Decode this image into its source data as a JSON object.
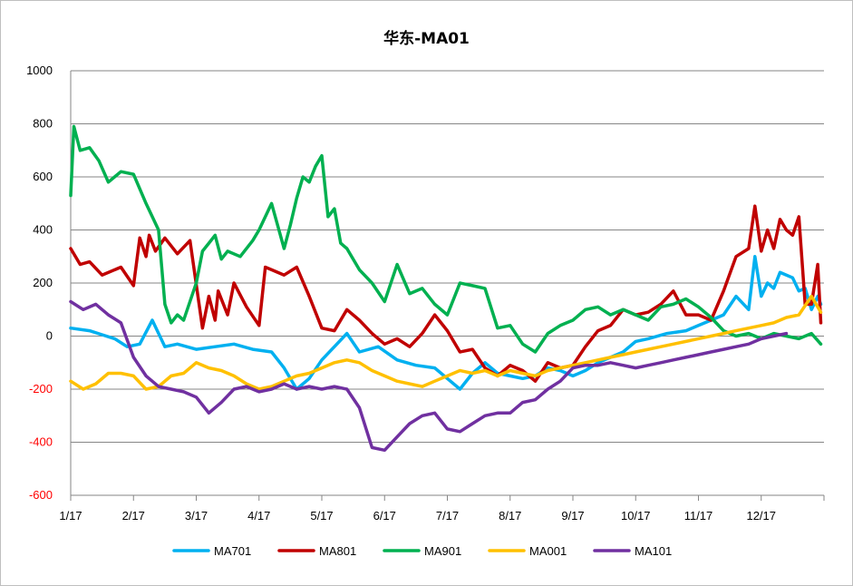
{
  "chart_data": {
    "type": "line",
    "title": "华东-MA01",
    "xlabel": "",
    "ylabel": "",
    "ylim": [
      -600,
      1000
    ],
    "yticks": [
      1000,
      800,
      600,
      400,
      200,
      0,
      -200,
      -400,
      -600
    ],
    "ytick_labels": [
      "1000",
      "800",
      "600",
      "400",
      "200",
      "0",
      "-200",
      "-400",
      "-600"
    ],
    "xlim": [
      0,
      12
    ],
    "xticks": [
      0,
      1,
      2,
      3,
      4,
      5,
      6,
      7,
      8,
      9,
      10,
      11,
      12
    ],
    "xtick_labels": [
      "1/17",
      "2/17",
      "3/17",
      "4/17",
      "5/17",
      "6/17",
      "7/17",
      "8/17",
      "9/17",
      "10/17",
      "11/17",
      "12/17",
      ""
    ],
    "grid": "horizontal",
    "legend": "bottom",
    "negative_tick_color": "#ff0000",
    "series": [
      {
        "name": "MA701",
        "color": "#00b0f0",
        "x": [
          0,
          0.3,
          0.5,
          0.7,
          0.9,
          1.1,
          1.3,
          1.5,
          1.7,
          2.0,
          2.3,
          2.6,
          2.9,
          3.2,
          3.4,
          3.6,
          3.8,
          4.0,
          4.2,
          4.4,
          4.6,
          4.9,
          5.2,
          5.5,
          5.8,
          6.0,
          6.2,
          6.4,
          6.6,
          6.8,
          7.0,
          7.2,
          7.4,
          7.6,
          7.8,
          8.0,
          8.2,
          8.4,
          8.6,
          8.8,
          9.0,
          9.2,
          9.5,
          9.8,
          10.0,
          10.2,
          10.4,
          10.6,
          10.8,
          10.9,
          11.0,
          11.1,
          11.2,
          11.3,
          11.4,
          11.5,
          11.6,
          11.7,
          11.8,
          11.9,
          11.95
        ],
        "values": [
          30,
          20,
          5,
          -10,
          -40,
          -30,
          60,
          -40,
          -30,
          -50,
          -40,
          -30,
          -50,
          -60,
          -120,
          -200,
          -160,
          -90,
          -40,
          10,
          -60,
          -40,
          -90,
          -110,
          -120,
          -160,
          -200,
          -140,
          -100,
          -140,
          -150,
          -160,
          -150,
          -120,
          -130,
          -150,
          -130,
          -100,
          -80,
          -60,
          -20,
          -10,
          10,
          20,
          40,
          60,
          80,
          150,
          100,
          300,
          150,
          200,
          180,
          240,
          230,
          220,
          170,
          180,
          100,
          150,
          120
        ]
      },
      {
        "name": "MA801",
        "color": "#c00000",
        "x": [
          0,
          0.15,
          0.3,
          0.5,
          0.8,
          1.0,
          1.1,
          1.2,
          1.25,
          1.35,
          1.5,
          1.7,
          1.9,
          2.1,
          2.2,
          2.3,
          2.35,
          2.5,
          2.6,
          2.8,
          3.0,
          3.1,
          3.2,
          3.4,
          3.6,
          3.8,
          4.0,
          4.2,
          4.4,
          4.6,
          4.8,
          5.0,
          5.2,
          5.4,
          5.6,
          5.8,
          6.0,
          6.2,
          6.4,
          6.6,
          6.8,
          7.0,
          7.2,
          7.4,
          7.6,
          7.8,
          8.0,
          8.2,
          8.4,
          8.6,
          8.8,
          9.0,
          9.2,
          9.4,
          9.6,
          9.8,
          10.0,
          10.2,
          10.4,
          10.6,
          10.8,
          10.9,
          11.0,
          11.1,
          11.2,
          11.3,
          11.4,
          11.5,
          11.6,
          11.7,
          11.8,
          11.9,
          11.95
        ],
        "values": [
          330,
          270,
          280,
          230,
          260,
          190,
          370,
          300,
          380,
          320,
          370,
          310,
          360,
          30,
          150,
          60,
          170,
          80,
          200,
          110,
          40,
          260,
          250,
          230,
          260,
          150,
          30,
          20,
          100,
          60,
          10,
          -30,
          -10,
          -40,
          10,
          80,
          20,
          -60,
          -50,
          -120,
          -150,
          -110,
          -130,
          -170,
          -100,
          -120,
          -110,
          -40,
          20,
          40,
          100,
          80,
          90,
          120,
          170,
          80,
          80,
          60,
          170,
          300,
          330,
          490,
          320,
          400,
          330,
          440,
          400,
          380,
          450,
          120,
          120,
          270,
          50
        ]
      },
      {
        "name": "MA901",
        "color": "#00b050",
        "x": [
          0,
          0.05,
          0.15,
          0.3,
          0.45,
          0.6,
          0.8,
          1.0,
          1.2,
          1.4,
          1.5,
          1.6,
          1.7,
          1.8,
          2.0,
          2.1,
          2.2,
          2.3,
          2.4,
          2.5,
          2.7,
          2.9,
          3.0,
          3.2,
          3.4,
          3.5,
          3.6,
          3.7,
          3.8,
          3.9,
          4.0,
          4.1,
          4.2,
          4.3,
          4.4,
          4.6,
          4.8,
          5.0,
          5.2,
          5.4,
          5.6,
          5.8,
          6.0,
          6.2,
          6.4,
          6.6,
          6.8,
          7.0,
          7.2,
          7.4,
          7.6,
          7.8,
          8.0,
          8.2,
          8.4,
          8.6,
          8.8,
          9.0,
          9.2,
          9.4,
          9.6,
          9.8,
          10.0,
          10.2,
          10.4,
          10.6,
          10.8,
          11.0,
          11.2,
          11.4,
          11.6,
          11.8,
          11.95
        ],
        "values": [
          530,
          790,
          700,
          710,
          660,
          580,
          620,
          610,
          500,
          400,
          120,
          50,
          80,
          60,
          200,
          320,
          350,
          380,
          290,
          320,
          300,
          360,
          400,
          500,
          330,
          420,
          520,
          600,
          580,
          640,
          680,
          450,
          480,
          350,
          330,
          250,
          200,
          130,
          270,
          160,
          180,
          120,
          80,
          200,
          190,
          180,
          30,
          40,
          -30,
          -60,
          10,
          40,
          60,
          100,
          110,
          80,
          100,
          80,
          60,
          110,
          120,
          140,
          110,
          70,
          20,
          0,
          10,
          -10,
          10,
          0,
          -10,
          10,
          -30
        ]
      },
      {
        "name": "MA001",
        "color": "#ffc000",
        "x": [
          0,
          0.2,
          0.4,
          0.6,
          0.8,
          1.0,
          1.2,
          1.4,
          1.6,
          1.8,
          2.0,
          2.2,
          2.4,
          2.6,
          2.8,
          3.0,
          3.2,
          3.4,
          3.6,
          3.8,
          4.0,
          4.2,
          4.4,
          4.6,
          4.8,
          5.0,
          5.2,
          5.4,
          5.6,
          5.8,
          6.0,
          6.2,
          6.4,
          6.6,
          6.8,
          7.0,
          7.2,
          7.4,
          7.6,
          7.8,
          8.0,
          8.2,
          8.4,
          8.6,
          8.8,
          9.0,
          9.2,
          9.4,
          9.6,
          9.8,
          10.0,
          10.2,
          10.4,
          10.6,
          10.8,
          11.0,
          11.2,
          11.4,
          11.6,
          11.8,
          11.95
        ],
        "values": [
          -170,
          -200,
          -180,
          -140,
          -140,
          -150,
          -200,
          -190,
          -150,
          -140,
          -100,
          -120,
          -130,
          -150,
          -180,
          -200,
          -190,
          -170,
          -150,
          -140,
          -120,
          -100,
          -90,
          -100,
          -130,
          -150,
          -170,
          -180,
          -190,
          -170,
          -150,
          -130,
          -140,
          -130,
          -150,
          -130,
          -140,
          -150,
          -130,
          -120,
          -110,
          -100,
          -90,
          -80,
          -70,
          -60,
          -50,
          -40,
          -30,
          -20,
          -10,
          0,
          10,
          20,
          30,
          40,
          50,
          70,
          80,
          150,
          90
        ]
      },
      {
        "name": "MA101",
        "color": "#7030a0",
        "x": [
          0,
          0.2,
          0.4,
          0.6,
          0.8,
          1.0,
          1.2,
          1.4,
          1.6,
          1.8,
          2.0,
          2.2,
          2.4,
          2.6,
          2.8,
          3.0,
          3.2,
          3.4,
          3.6,
          3.8,
          4.0,
          4.2,
          4.4,
          4.6,
          4.8,
          5.0,
          5.2,
          5.4,
          5.6,
          5.8,
          6.0,
          6.2,
          6.4,
          6.6,
          6.8,
          7.0,
          7.2,
          7.4,
          7.6,
          7.8,
          8.0,
          8.2,
          8.4,
          8.6,
          8.8,
          9.0,
          9.2,
          9.4,
          9.6,
          9.8,
          10.0,
          10.2,
          10.4,
          10.6,
          10.8,
          11.0,
          11.2,
          11.4
        ],
        "values": [
          130,
          100,
          120,
          80,
          50,
          -80,
          -150,
          -190,
          -200,
          -210,
          -230,
          -290,
          -250,
          -200,
          -190,
          -210,
          -200,
          -180,
          -200,
          -190,
          -200,
          -190,
          -200,
          -270,
          -420,
          -430,
          -380,
          -330,
          -300,
          -290,
          -350,
          -360,
          -330,
          -300,
          -290,
          -290,
          -250,
          -240,
          -200,
          -170,
          -120,
          -110,
          -110,
          -100,
          -110,
          -120,
          -110,
          -100,
          -90,
          -80,
          -70,
          -60,
          -50,
          -40,
          -30,
          -10,
          0,
          10
        ]
      }
    ]
  }
}
